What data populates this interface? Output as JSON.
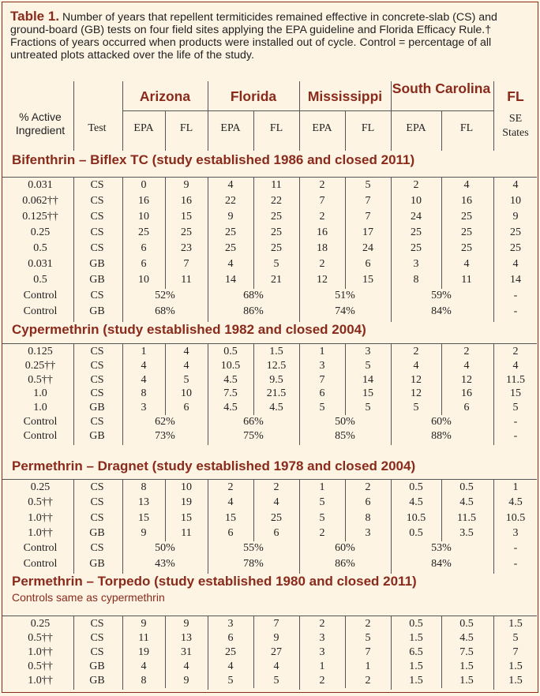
{
  "caption": {
    "label": "Table 1.",
    "text": " Number of years that repellent termiticides remained effective in concrete-slab (CS) and ground-board (GB) tests on four field sites applying the EPA guideline and Florida Efficacy Rule.† Fractions of years occurred when products were installed out of cycle. Control = percentage of all untreated plots attacked over the life of the study."
  },
  "header": {
    "col_ingredient": "% Active Ingredient",
    "col_test": "Test",
    "states": [
      "Arizona",
      "Florida",
      "Mississippi",
      "South Carolina",
      "FL"
    ],
    "sub": [
      "EPA",
      "FL",
      "EPA",
      "FL",
      "EPA",
      "FL",
      "EPA",
      "FL"
    ],
    "fl_sub": "SE States"
  },
  "sections": [
    {
      "title": "Bifenthrin – Biflex TC (study established 1986 and closed 2011)",
      "note": "",
      "rows": [
        {
          "ai": "0.031",
          "test": "CS",
          "v": [
            "0",
            "9",
            "4",
            "11",
            "2",
            "5",
            "2",
            "4"
          ],
          "fl": "4"
        },
        {
          "ai": "0.062††",
          "test": "CS",
          "v": [
            "16",
            "16",
            "22",
            "22",
            "7",
            "7",
            "10",
            "16"
          ],
          "fl": "10"
        },
        {
          "ai": "0.125††",
          "test": "CS",
          "v": [
            "10",
            "15",
            "9",
            "25",
            "2",
            "7",
            "24",
            "25"
          ],
          "fl": "9"
        },
        {
          "ai": "0.25",
          "test": "CS",
          "v": [
            "25",
            "25",
            "25",
            "25",
            "16",
            "17",
            "25",
            "25"
          ],
          "fl": "25"
        },
        {
          "ai": "0.5",
          "test": "CS",
          "v": [
            "6",
            "23",
            "25",
            "25",
            "18",
            "24",
            "25",
            "25"
          ],
          "fl": "25"
        },
        {
          "ai": "0.031",
          "test": "GB",
          "v": [
            "6",
            "7",
            "4",
            "5",
            "2",
            "6",
            "3",
            "4"
          ],
          "fl": "4"
        },
        {
          "ai": "0.5",
          "test": "GB",
          "v": [
            "10",
            "11",
            "14",
            "21",
            "12",
            "15",
            "8",
            "11"
          ],
          "fl": "14"
        }
      ],
      "controls": [
        {
          "ai": "Control",
          "test": "CS",
          "v": [
            "52%",
            "68%",
            "51%",
            "59%"
          ],
          "fl": "-"
        },
        {
          "ai": "Control",
          "test": "GB",
          "v": [
            "68%",
            "86%",
            "74%",
            "84%"
          ],
          "fl": "-"
        }
      ]
    },
    {
      "title": "Cypermethrin (study established 1982 and closed 2004)",
      "note": "",
      "rows": [
        {
          "ai": "0.125",
          "test": "CS",
          "v": [
            "1",
            "4",
            "0.5",
            "1.5",
            "1",
            "3",
            "2",
            "2"
          ],
          "fl": "2"
        },
        {
          "ai": "0.25††",
          "test": "CS",
          "v": [
            "4",
            "4",
            "10.5",
            "12.5",
            "3",
            "5",
            "4",
            "4"
          ],
          "fl": "4"
        },
        {
          "ai": "0.5††",
          "test": "CS",
          "v": [
            "4",
            "5",
            "4.5",
            "9.5",
            "7",
            "14",
            "12",
            "12"
          ],
          "fl": "11.5"
        },
        {
          "ai": "1.0",
          "test": "CS",
          "v": [
            "8",
            "10",
            "7.5",
            "21.5",
            "6",
            "15",
            "12",
            "16"
          ],
          "fl": "15"
        },
        {
          "ai": "1.0",
          "test": "GB",
          "v": [
            "3",
            "6",
            "4.5",
            "4.5",
            "5",
            "5",
            "5",
            "6"
          ],
          "fl": "5"
        }
      ],
      "controls": [
        {
          "ai": "Control",
          "test": "CS",
          "v": [
            "62%",
            "66%",
            "50%",
            "60%"
          ],
          "fl": "-"
        },
        {
          "ai": "Control",
          "test": "GB",
          "v": [
            "73%",
            "75%",
            "85%",
            "88%"
          ],
          "fl": "-"
        }
      ]
    },
    {
      "title": "Permethrin – Dragnet (study established 1978 and closed 2004)",
      "note": "",
      "rows": [
        {
          "ai": "0.25",
          "test": "CS",
          "v": [
            "8",
            "10",
            "2",
            "2",
            "1",
            "2",
            "0.5",
            "0.5"
          ],
          "fl": "1"
        },
        {
          "ai": "0.5††",
          "test": "CS",
          "v": [
            "13",
            "19",
            "4",
            "4",
            "5",
            "6",
            "4.5",
            "4.5"
          ],
          "fl": "4.5"
        },
        {
          "ai": "1.0††",
          "test": "CS",
          "v": [
            "15",
            "15",
            "15",
            "25",
            "5",
            "8",
            "10.5",
            "11.5"
          ],
          "fl": "10.5"
        },
        {
          "ai": "1.0††",
          "test": "GB",
          "v": [
            "9",
            "11",
            "6",
            "6",
            "2",
            "3",
            "0.5",
            "3.5"
          ],
          "fl": "3"
        }
      ],
      "controls": [
        {
          "ai": "Control",
          "test": "CS",
          "v": [
            "50%",
            "55%",
            "60%",
            "53%"
          ],
          "fl": "-"
        },
        {
          "ai": "Control",
          "test": "GB",
          "v": [
            "43%",
            "78%",
            "86%",
            "84%"
          ],
          "fl": "-"
        }
      ]
    },
    {
      "title": "Permethrin – Torpedo (study established 1980 and closed 2011)",
      "note": "Controls same as cypermethrin",
      "rows": [
        {
          "ai": "0.25",
          "test": "CS",
          "v": [
            "9",
            "9",
            "3",
            "7",
            "2",
            "2",
            "0.5",
            "0.5"
          ],
          "fl": "1.5"
        },
        {
          "ai": "0.5††",
          "test": "CS",
          "v": [
            "11",
            "13",
            "6",
            "9",
            "3",
            "5",
            "1.5",
            "4.5"
          ],
          "fl": "5"
        },
        {
          "ai": "1.0††",
          "test": "CS",
          "v": [
            "19",
            "31",
            "25",
            "27",
            "3",
            "7",
            "6.5",
            "7.5"
          ],
          "fl": "7"
        },
        {
          "ai": "0.5††",
          "test": "GB",
          "v": [
            "4",
            "4",
            "4",
            "4",
            "1",
            "1",
            "1.5",
            "1.5"
          ],
          "fl": "1.5"
        },
        {
          "ai": "1.0††",
          "test": "GB",
          "v": [
            "8",
            "9",
            "5",
            "5",
            "2",
            "2",
            "1.5",
            "1.5"
          ],
          "fl": "1.5"
        }
      ],
      "controls": []
    }
  ]
}
